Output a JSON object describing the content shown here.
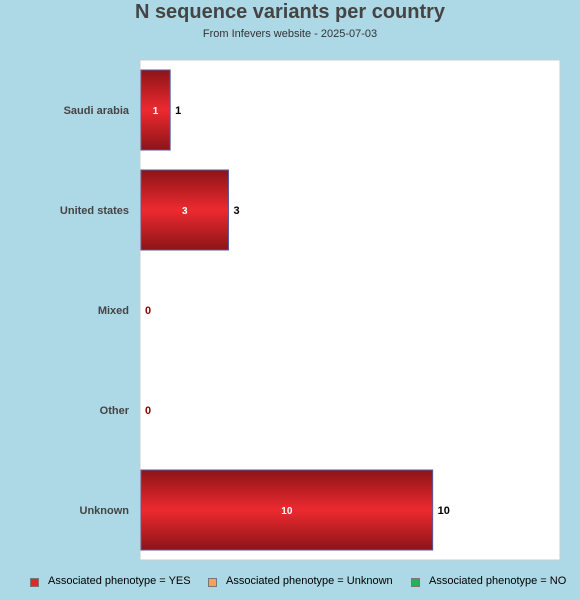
{
  "chart_data": {
    "type": "bar",
    "orientation": "horizontal",
    "title": "N sequence variants per country",
    "subtitle": "From Infevers website - 2025-07-03",
    "categories": [
      "Saudi arabia",
      "United states",
      "Mixed",
      "Other",
      "Unknown"
    ],
    "series": [
      {
        "name": "Associated phenotype = YES",
        "color": "#e3262b",
        "values": [
          1,
          3,
          0,
          0,
          10
        ]
      },
      {
        "name": "Associated phenotype = Unknown",
        "color": "#f2a35b",
        "values": [
          0,
          0,
          0,
          0,
          0
        ]
      },
      {
        "name": "Associated phenotype = NO",
        "color": "#22b25a",
        "values": [
          0,
          0,
          0,
          0,
          0
        ]
      }
    ],
    "totals": [
      1,
      3,
      0,
      0,
      10
    ],
    "xlim": [
      0,
      12
    ],
    "grid": false,
    "legend_position": "bottom"
  },
  "colors": {
    "background": "#add8e6",
    "plot_background": "#ffffff",
    "bar_dark": "#8c1418",
    "bar_light": "#ec2a2f",
    "zero_label": "#8b0000"
  }
}
